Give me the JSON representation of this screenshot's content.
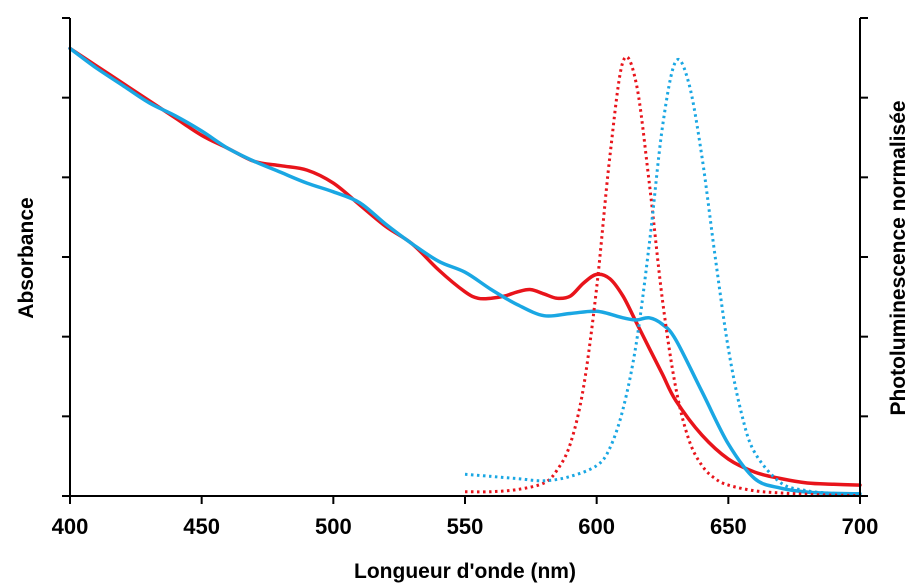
{
  "chart_data": {
    "type": "line",
    "xlabel": "Longueur d'onde (nm)",
    "ylabel": "Absorbance",
    "y2label": "Photoluminescence normalisée",
    "xlim": [
      400,
      700
    ],
    "xticks": [
      400,
      450,
      500,
      550,
      600,
      650,
      700
    ],
    "ylim": [
      0,
      1.1
    ],
    "y_ticks_count": 7,
    "grid": false,
    "series": [
      {
        "axis": "left",
        "style": "solid",
        "color": "#e8141b",
        "x": [
          400,
          410,
          420,
          430,
          440,
          450,
          460,
          470,
          480,
          490,
          500,
          510,
          520,
          530,
          540,
          550,
          555,
          560,
          565,
          570,
          575,
          580,
          585,
          590,
          595,
          600,
          605,
          610,
          615,
          620,
          625,
          630,
          640,
          650,
          660,
          670,
          680,
          690,
          700
        ],
        "y": [
          1.03,
          0.99,
          0.95,
          0.91,
          0.87,
          0.83,
          0.8,
          0.77,
          0.76,
          0.75,
          0.72,
          0.67,
          0.62,
          0.58,
          0.52,
          0.47,
          0.455,
          0.455,
          0.46,
          0.47,
          0.475,
          0.465,
          0.455,
          0.46,
          0.49,
          0.51,
          0.5,
          0.46,
          0.4,
          0.34,
          0.28,
          0.22,
          0.14,
          0.085,
          0.055,
          0.04,
          0.03,
          0.027,
          0.025
        ]
      },
      {
        "axis": "left",
        "style": "solid",
        "color": "#1aa7e3",
        "x": [
          400,
          410,
          420,
          430,
          440,
          450,
          460,
          470,
          480,
          490,
          500,
          510,
          520,
          530,
          540,
          550,
          560,
          570,
          580,
          590,
          600,
          610,
          615,
          620,
          625,
          630,
          640,
          650,
          660,
          670,
          680,
          690,
          700
        ],
        "y": [
          1.03,
          0.985,
          0.945,
          0.905,
          0.875,
          0.84,
          0.8,
          0.77,
          0.745,
          0.72,
          0.7,
          0.675,
          0.625,
          0.58,
          0.54,
          0.515,
          0.475,
          0.44,
          0.415,
          0.42,
          0.425,
          0.41,
          0.405,
          0.41,
          0.395,
          0.36,
          0.24,
          0.12,
          0.04,
          0.018,
          0.009,
          0.006,
          0.005
        ]
      },
      {
        "axis": "right",
        "style": "dotted",
        "color": "#e8141b",
        "x": [
          550,
          560,
          570,
          580,
          585,
          590,
          595,
          600,
          605,
          610,
          615,
          620,
          625,
          630,
          635,
          640,
          645,
          650,
          660,
          670,
          680,
          690,
          700
        ],
        "y": [
          0.01,
          0.01,
          0.015,
          0.03,
          0.06,
          0.12,
          0.25,
          0.48,
          0.78,
          1.0,
          0.95,
          0.72,
          0.45,
          0.25,
          0.13,
          0.07,
          0.04,
          0.025,
          0.012,
          0.007,
          0.004,
          0.002,
          0.001
        ]
      },
      {
        "axis": "right",
        "style": "dotted",
        "color": "#1aa7e3",
        "x": [
          550,
          560,
          570,
          580,
          590,
          600,
          605,
          610,
          615,
          620,
          625,
          630,
          635,
          640,
          645,
          650,
          655,
          660,
          670,
          680,
          690,
          700
        ],
        "y": [
          0.05,
          0.045,
          0.04,
          0.035,
          0.045,
          0.07,
          0.11,
          0.2,
          0.35,
          0.58,
          0.85,
          1.0,
          0.95,
          0.78,
          0.55,
          0.34,
          0.19,
          0.1,
          0.03,
          0.012,
          0.006,
          0.003
        ]
      }
    ]
  }
}
